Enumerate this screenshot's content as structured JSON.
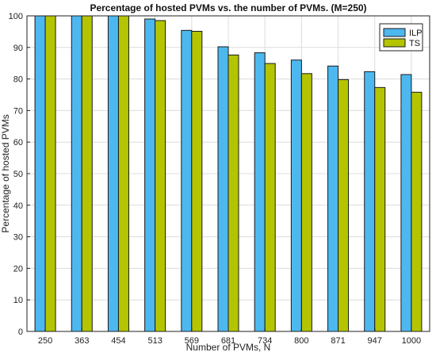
{
  "chart_data": {
    "type": "bar",
    "title": "Percentage of hosted PVMs vs. the number of PVMs. (M=250)",
    "xlabel": "Number of PVMs, N",
    "ylabel": "Percentage of hosted PVMs",
    "categories": [
      "250",
      "363",
      "454",
      "513",
      "569",
      "681",
      "734",
      "800",
      "871",
      "947",
      "1000"
    ],
    "ylim": [
      0,
      100
    ],
    "yticks": [
      0,
      10,
      20,
      30,
      40,
      50,
      60,
      70,
      80,
      90,
      100
    ],
    "grid": true,
    "legend_position": "top-right",
    "series": [
      {
        "name": "ILP",
        "color": "#4db8f0",
        "values": [
          100,
          100,
          100,
          99,
          95.4,
          90.2,
          88.3,
          86,
          84.1,
          82.3,
          81.4
        ]
      },
      {
        "name": "TS",
        "color": "#b5c400",
        "values": [
          100,
          100,
          100,
          98.5,
          95.1,
          87.6,
          84.9,
          81.7,
          79.8,
          77.3,
          75.8
        ]
      }
    ]
  }
}
